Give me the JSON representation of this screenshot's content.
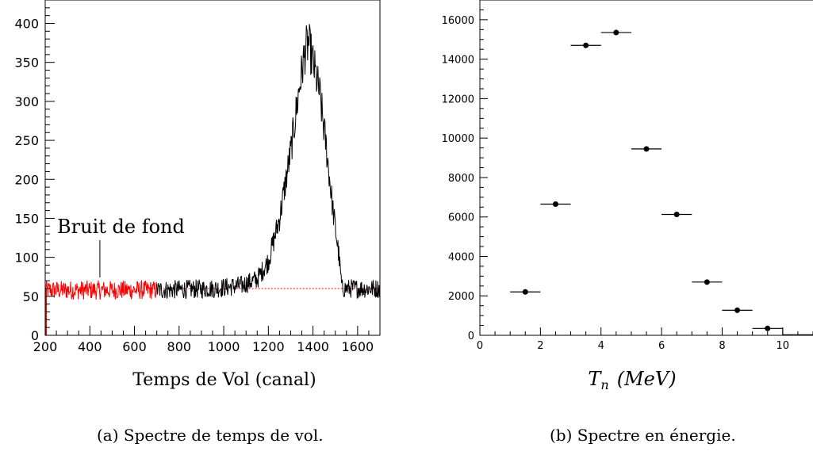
{
  "chart_data": [
    {
      "type": "line",
      "caption": "(a) Spectre de temps de vol.",
      "xlabel": "Temps de Vol (canal)",
      "ylabel": "",
      "xlim": [
        200,
        1700
      ],
      "ylim": [
        0,
        430
      ],
      "x_ticks": [
        200,
        400,
        600,
        800,
        1000,
        1200,
        1400,
        1600
      ],
      "y_ticks": [
        0,
        50,
        100,
        150,
        200,
        250,
        300,
        350,
        400
      ],
      "annotation": {
        "text": "Bruit de fond",
        "x": 445
      },
      "background_level": 60,
      "background_region": [
        200,
        700
      ],
      "profile": [
        [
          200,
          58
        ],
        [
          700,
          58
        ],
        [
          960,
          60
        ],
        [
          1080,
          64
        ],
        [
          1150,
          72
        ],
        [
          1200,
          95
        ],
        [
          1250,
          150
        ],
        [
          1300,
          235
        ],
        [
          1340,
          320
        ],
        [
          1365,
          365
        ],
        [
          1380,
          375
        ],
        [
          1400,
          350
        ],
        [
          1430,
          310
        ],
        [
          1460,
          240
        ],
        [
          1490,
          160
        ],
        [
          1515,
          105
        ],
        [
          1530,
          60
        ],
        [
          1700,
          60
        ]
      ],
      "noise_amplitude": 9,
      "colors": {
        "background": "#ff0000",
        "signal": "#000000",
        "baseline": "#ff0000"
      }
    },
    {
      "type": "scatter",
      "caption": "(b) Spectre en énergie.",
      "xlabel_base": "T",
      "xlabel_sub": "n",
      "xlabel_units": "(MeV)",
      "ylabel": "",
      "xlim": [
        0,
        11
      ],
      "ylim": [
        0,
        17000
      ],
      "x_ticks": [
        0,
        2,
        4,
        6,
        8,
        10
      ],
      "y_ticks": [
        0,
        2000,
        4000,
        6000,
        8000,
        10000,
        12000,
        14000,
        16000
      ],
      "points": [
        {
          "x": 1.5,
          "y": 2200,
          "xerr": 0.5
        },
        {
          "x": 2.5,
          "y": 6650,
          "xerr": 0.5
        },
        {
          "x": 3.5,
          "y": 14700,
          "xerr": 0.5
        },
        {
          "x": 4.5,
          "y": 15350,
          "xerr": 0.5
        },
        {
          "x": 5.5,
          "y": 9450,
          "xerr": 0.5
        },
        {
          "x": 6.5,
          "y": 6130,
          "xerr": 0.5
        },
        {
          "x": 7.5,
          "y": 2700,
          "xerr": 0.5
        },
        {
          "x": 8.5,
          "y": 1270,
          "xerr": 0.5
        },
        {
          "x": 9.5,
          "y": 350,
          "xerr": 0.5
        }
      ],
      "step_tail": {
        "x": [
          10,
          11
        ],
        "y": 30
      }
    }
  ]
}
